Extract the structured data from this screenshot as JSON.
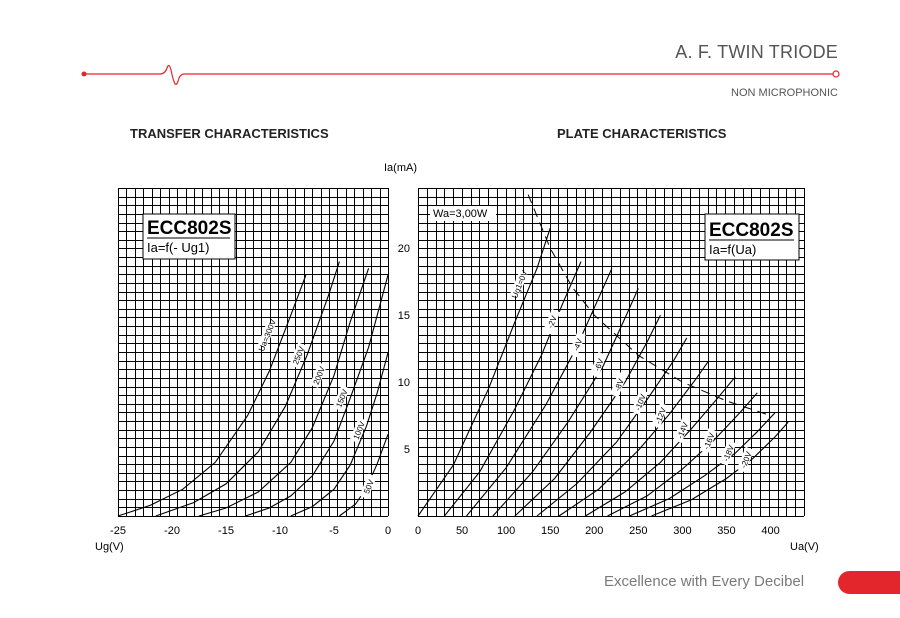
{
  "header": {
    "title": "A. F. TWIN TRIODE",
    "subtitle": "NON MICROPHONIC",
    "accent_color": "#e3262b"
  },
  "footer": {
    "tagline": "Excellence with Every Decibel"
  },
  "shared_ylabel": "Ia(mA)",
  "chart_data": [
    {
      "type": "line",
      "id": "transfer",
      "title": "TRANSFER CHARACTERISTICS",
      "xlabel": "Ug(V)",
      "ylabel": "Ia(mA)",
      "xlim": [
        -25,
        0
      ],
      "ylim": [
        0,
        24.5
      ],
      "xticks": [
        -25,
        -20,
        -15,
        -10,
        -5,
        0
      ],
      "xtick_labels": [
        "-25",
        "-20",
        "-15",
        "-10",
        "-5",
        "0"
      ],
      "legend": {
        "name": "ECC802S",
        "formula": "Ia=f(- Ug1)",
        "position": "top-left"
      },
      "grid": true,
      "series": [
        {
          "name": "Ua=300V",
          "label": "Ua=300V",
          "label_at": [
            -11.2,
            13.5
          ],
          "x": [
            -25,
            -22,
            -19,
            -16,
            -13,
            -11,
            -9,
            -7.6
          ],
          "y": [
            0,
            0.8,
            2,
            4,
            7.5,
            10.8,
            15,
            18
          ]
        },
        {
          "name": "250V",
          "label": "250V",
          "label_at": [
            -8.3,
            12
          ],
          "x": [
            -21.5,
            -18,
            -15,
            -12,
            -9.5,
            -7.5,
            -5.5,
            -4.5
          ],
          "y": [
            0,
            1,
            2.4,
            4.8,
            8.2,
            12,
            16.5,
            19
          ]
        },
        {
          "name": "200V",
          "label": "200V",
          "label_at": [
            -6.4,
            10.5
          ],
          "x": [
            -17.5,
            -15,
            -12,
            -9,
            -7,
            -5,
            -3.5,
            -1.8
          ],
          "y": [
            0,
            0.6,
            1.8,
            4,
            6.6,
            10.5,
            14.5,
            18.5
          ]
        },
        {
          "name": "150V",
          "label": "150V",
          "label_at": [
            -4.3,
            8.8
          ],
          "x": [
            -13.2,
            -11,
            -9,
            -7,
            -5,
            -3.5,
            -1.8,
            0
          ],
          "y": [
            0,
            0.6,
            1.5,
            3,
            5.6,
            8.8,
            12.6,
            18
          ]
        },
        {
          "name": "100V",
          "label": "100V",
          "label_at": [
            -2.7,
            6.4
          ],
          "x": [
            -9,
            -7,
            -5,
            -3.5,
            -2,
            -1,
            0
          ],
          "y": [
            0,
            0.7,
            2,
            3.8,
            6.7,
            9.2,
            12.2
          ]
        },
        {
          "name": "50V",
          "label": "50V",
          "label_at": [
            -1.8,
            2.2
          ],
          "x": [
            -4.5,
            -3,
            -2,
            -1,
            0
          ],
          "y": [
            0,
            0.9,
            2.1,
            3.9,
            6.1
          ]
        }
      ]
    },
    {
      "type": "line",
      "id": "plate",
      "title": "PLATE CHARACTERISTICS",
      "xlabel": "Ua(V)",
      "ylabel": "Ia(mA)",
      "xlim": [
        0,
        438
      ],
      "ylim": [
        0,
        24.5
      ],
      "xticks": [
        0,
        50,
        100,
        150,
        200,
        250,
        300,
        350,
        400
      ],
      "xtick_labels": [
        "0",
        "50",
        "100",
        "150",
        "200",
        "250",
        "300",
        "350",
        "400"
      ],
      "yticks": [
        5,
        10,
        15,
        20
      ],
      "ytick_labels": [
        "5",
        "10",
        "15",
        "20"
      ],
      "legend": {
        "name": "ECC802S",
        "formula": "Ia=f(Ua)",
        "position": "top-right"
      },
      "annotation": "Wa=3,00W",
      "grid": true,
      "series": [
        {
          "name": "Ug1=0V",
          "label": "Ug1=0V",
          "label_at": [
            115,
            17.3
          ],
          "x": [
            0,
            40,
            80,
            110,
            135,
            150
          ],
          "y": [
            0,
            3.8,
            9.5,
            14.5,
            18.5,
            21.5
          ]
        },
        {
          "name": "-2V",
          "label": "-2V",
          "label_at": [
            152,
            14.5
          ],
          "x": [
            30,
            70,
            110,
            140,
            165,
            185
          ],
          "y": [
            0,
            3.3,
            8,
            12,
            16,
            19
          ]
        },
        {
          "name": "-4V",
          "label": "-4V",
          "label_at": [
            181,
            12.8
          ],
          "x": [
            55,
            100,
            145,
            180,
            205,
            220
          ],
          "y": [
            0,
            3.6,
            8.3,
            12.6,
            16.3,
            18.5
          ]
        },
        {
          "name": "-6V",
          "label": "-6V",
          "label_at": [
            205,
            11.3
          ],
          "x": [
            85,
            130,
            170,
            210,
            235,
            250
          ],
          "y": [
            0,
            3.3,
            7,
            11.2,
            14.8,
            17
          ]
        },
        {
          "name": "-8V",
          "label": "-8V",
          "label_at": [
            228,
            9.8
          ],
          "x": [
            110,
            155,
            195,
            235,
            260,
            275
          ],
          "y": [
            0,
            2.8,
            6.2,
            10,
            13,
            15
          ]
        },
        {
          "name": "-10V",
          "label": "-10V",
          "label_at": [
            252,
            8.5
          ],
          "x": [
            135,
            180,
            225,
            260,
            290,
            305
          ],
          "y": [
            0,
            2.4,
            5.5,
            8.7,
            11.6,
            13.3
          ]
        },
        {
          "name": "-12V",
          "label": "-12V",
          "label_at": [
            275,
            7.5
          ],
          "x": [
            160,
            205,
            250,
            285,
            315,
            330
          ],
          "y": [
            0,
            2,
            4.9,
            7.6,
            10.2,
            11.6
          ]
        },
        {
          "name": "-14V",
          "label": "-14V",
          "label_at": [
            300,
            6.4
          ],
          "x": [
            190,
            235,
            275,
            310,
            340,
            360
          ],
          "y": [
            0,
            1.8,
            4,
            6.5,
            8.8,
            10.4
          ]
        },
        {
          "name": "-16V",
          "label": "-16V",
          "label_at": [
            330,
            5.6
          ],
          "x": [
            215,
            260,
            300,
            335,
            365,
            385
          ],
          "y": [
            0,
            1.5,
            3.5,
            5.6,
            7.7,
            9.2
          ]
        },
        {
          "name": "-18V",
          "label": "-18V",
          "label_at": [
            352,
            4.7
          ],
          "x": [
            240,
            285,
            325,
            360,
            385,
            405
          ],
          "y": [
            0,
            1.3,
            3,
            4.7,
            6.3,
            7.7
          ]
        },
        {
          "name": "-20V",
          "label": "-20V",
          "label_at": [
            372,
            4.2
          ],
          "x": [
            265,
            310,
            350,
            380,
            405,
            420
          ],
          "y": [
            0,
            1.2,
            2.8,
            4.3,
            5.9,
            7
          ]
        }
      ],
      "max_dissipation_curve": {
        "name": "Wa=3,00W",
        "x": [
          125,
          150,
          175,
          200,
          250,
          300,
          350,
          400
        ],
        "y": [
          24,
          20,
          17.1,
          15,
          12,
          10,
          8.6,
          7.5
        ]
      }
    }
  ]
}
